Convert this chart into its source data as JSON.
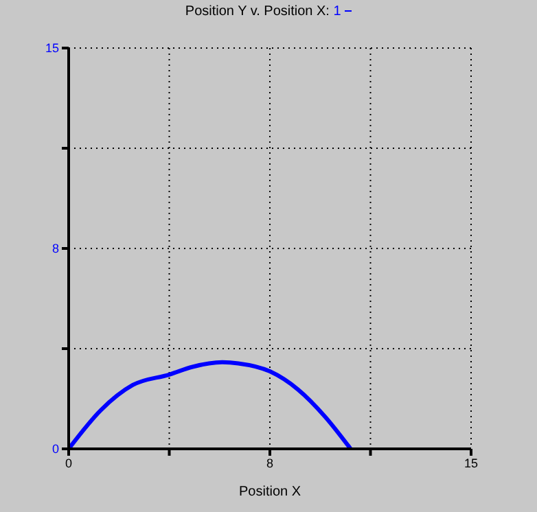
{
  "chart_data": {
    "type": "line",
    "title": "Position Y v. Position X:",
    "xlabel": "Position X",
    "xlim": [
      0,
      15
    ],
    "xticks": [
      0,
      {
        "value": 3.75,
        "label": null
      },
      {
        "value": 7.5,
        "label": "8"
      },
      {
        "value": 11.25,
        "label": null
      },
      15
    ],
    "ylim": [
      0,
      15
    ],
    "yticks": [
      0,
      {
        "value": 3.75,
        "label": null
      },
      {
        "value": 7.5,
        "label": "8"
      },
      {
        "value": 11.25,
        "label": null
      },
      15
    ],
    "grid": true,
    "legend": "top",
    "marker": "none",
    "line_style": "solid",
    "series": [
      {
        "name": "1",
        "color": "#0000ff",
        "x": [
          0,
          1.2,
          2.39,
          3.75,
          4.62,
          5.73,
          6.32,
          7.5,
          8.55,
          9.57,
          10.51
        ],
        "values": [
          0,
          1.45,
          2.39,
          2.78,
          3.07,
          3.24,
          3.2,
          2.9,
          2.22,
          1.19,
          0
        ]
      }
    ]
  }
}
